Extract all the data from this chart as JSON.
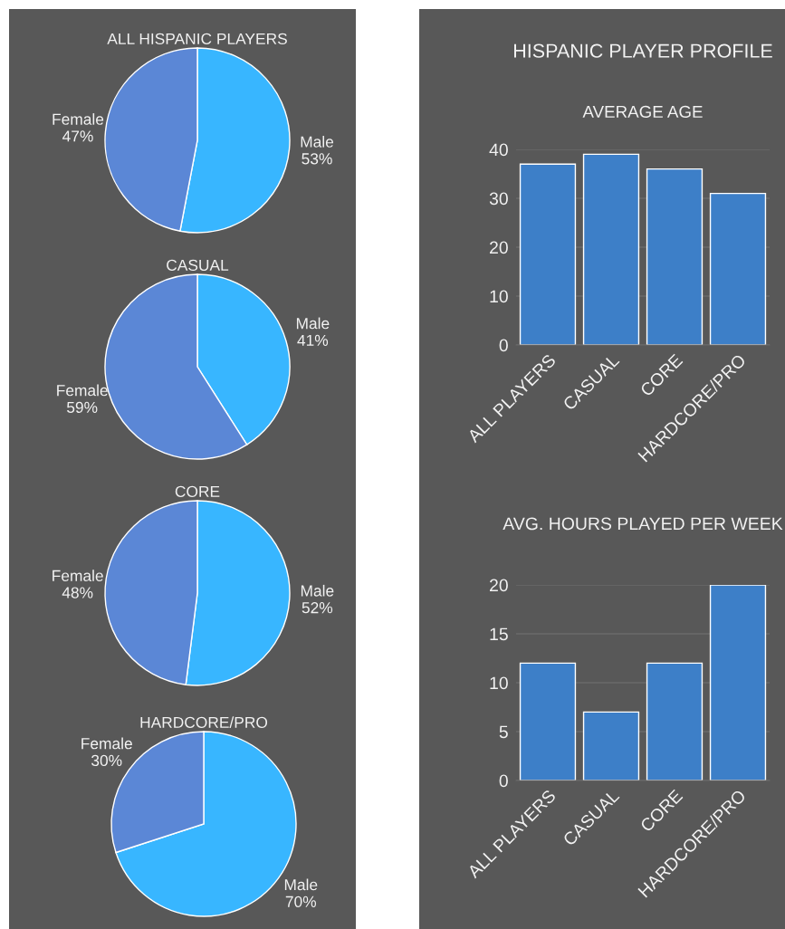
{
  "chart_data": [
    {
      "type": "pie",
      "title": "ALL HISPANIC PLAYERS",
      "categories": [
        "Male",
        "Female"
      ],
      "values": [
        53,
        47
      ],
      "value_labels": [
        "53%",
        "47%"
      ],
      "colors": [
        "#38b6ff",
        "#5b87d6"
      ]
    },
    {
      "type": "pie",
      "title": "CASUAL",
      "categories": [
        "Male",
        "Female"
      ],
      "values": [
        41,
        59
      ],
      "value_labels": [
        "41%",
        "59%"
      ],
      "colors": [
        "#38b6ff",
        "#5b87d6"
      ]
    },
    {
      "type": "pie",
      "title": "CORE",
      "categories": [
        "Male",
        "Female"
      ],
      "values": [
        52,
        48
      ],
      "value_labels": [
        "52%",
        "48%"
      ],
      "colors": [
        "#38b6ff",
        "#5b87d6"
      ]
    },
    {
      "type": "pie",
      "title": "HARDCORE/PRO",
      "categories": [
        "Male",
        "Female"
      ],
      "values": [
        70,
        30
      ],
      "value_labels": [
        "70%",
        "30%"
      ],
      "colors": [
        "#38b6ff",
        "#5b87d6"
      ]
    },
    {
      "type": "bar",
      "title": "HISPANIC PLAYER PROFILE",
      "subtitle": "AVERAGE AGE",
      "categories": [
        "ALL PLAYERS",
        "CASUAL",
        "CORE",
        "HARDCORE/PRO"
      ],
      "values": [
        37,
        39,
        36,
        31
      ],
      "color": "#3d7fc8",
      "ylim": [
        0,
        40
      ],
      "yticks": [
        0,
        10,
        20,
        30,
        40
      ],
      "grid": "y"
    },
    {
      "type": "bar",
      "title": "AVG. HOURS PLAYED PER WEEK",
      "categories": [
        "ALL PLAYERS",
        "CASUAL",
        "CORE",
        "HARDCORE/PRO"
      ],
      "values": [
        12,
        7,
        12,
        20
      ],
      "color": "#3d7fc8",
      "ylim": [
        0,
        20
      ],
      "yticks": [
        0,
        5,
        10,
        15,
        20
      ],
      "grid": "y"
    }
  ]
}
